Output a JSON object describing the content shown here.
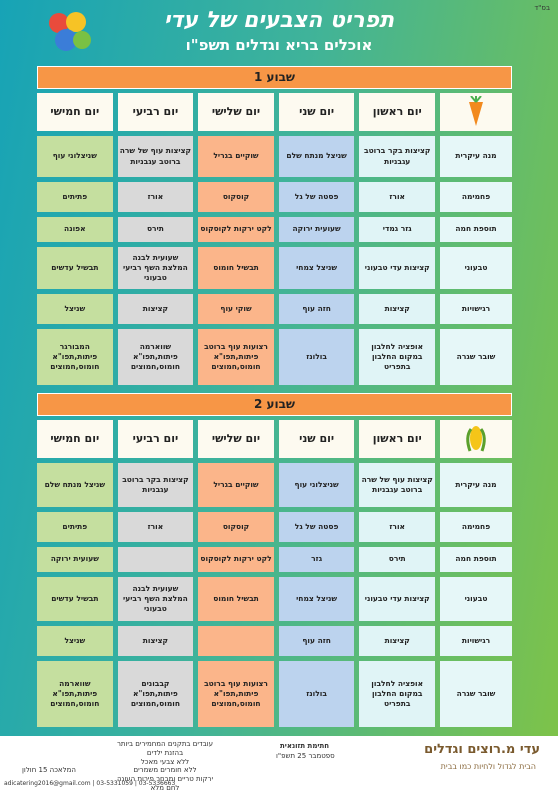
{
  "header": {
    "tag": "בס\"ד",
    "title": "תפריט הצבעים של עדי",
    "subtitle": "אוכלים בריא וגדלים תשפ\"ו"
  },
  "weeks": [
    {
      "title": "שבוע 1",
      "days": [
        "יום ראשון",
        "יום שני",
        "יום שלישי",
        "יום רביעי",
        "יום חמישי"
      ],
      "rows": [
        {
          "label": "מנה עיקרית",
          "cells": [
            "קציצות בקר ברוטב עגבניות",
            "שניצל מנתח שלם",
            "שוקיים בגריל",
            "קציצות עוף של שרה ברוטב עגבניות",
            "שניצלוני עוף"
          ]
        },
        {
          "label": "פחמימה",
          "cells": [
            "אורז",
            "פסטה של גל",
            "קוסקוס",
            "אורז",
            "פתיתים"
          ]
        },
        {
          "label": "תוספת חמה",
          "cells": [
            "גזר גמדי",
            "שעועית ירוקה",
            "לקט ירקות לקוסקוס",
            "תירס",
            "אפונה"
          ]
        },
        {
          "label": "טבעוני",
          "cells": [
            "קציצות עדי טבעוני",
            "שניצל צמחי",
            "תבשיל חומוס",
            "שעועית לבנה המלצת השף רביעי טבעוני",
            "תבשיל עדשים"
          ]
        },
        {
          "label": "רגישויות",
          "cells": [
            "קציצות",
            "חזה עוף",
            "שוקי עוף",
            "קציצות",
            "שניצל"
          ]
        },
        {
          "label": "שובר שגרה",
          "cells": [
            "אופציה לחלבון במקום החלבון בתפריט",
            "בולונז",
            "רצועות עוף ברוטב פיתות,תפו\"א חומוס,חמוצים",
            "שווארמה פיתות,תפו\"א חומוס,חמוצים",
            "המבורגר פיתות,תפו\"א חומוס,חמוצים"
          ]
        }
      ]
    },
    {
      "title": "שבוע 2",
      "days": [
        "יום ראשון",
        "יום שני",
        "יום שלישי",
        "יום רביעי",
        "יום חמישי"
      ],
      "rows": [
        {
          "label": "מנה עיקרית",
          "cells": [
            "קציצות עוף של שרה ברוטב עגבניות",
            "שניצלוני עוף",
            "שוקיים בגריל",
            "קציצות בקר ברוטב עגבניות",
            "שניצל מנתח שלם"
          ]
        },
        {
          "label": "פחמימה",
          "cells": [
            "אורז",
            "פסטה של גל",
            "קוסקוס",
            "אורז",
            "פתיתים"
          ]
        },
        {
          "label": "תוספת חמה",
          "cells": [
            "תירס",
            "גזר",
            "לקט ירקות לקוסקוס",
            null,
            "שעועית ירוקה"
          ]
        },
        {
          "label": "טבעוני",
          "cells": [
            "קציצות עדי טבעוני",
            "שניצל צמחי",
            "תבשיל חומוס",
            "שעועית לבנה המלצת השף רביעי טבעוני",
            "תבשיל עדשים"
          ]
        },
        {
          "label": "רגישויות",
          "cells": [
            "קציצות",
            "חזה עוף",
            null,
            "קציצות",
            "שניצל"
          ]
        },
        {
          "label": "שובר שגרה",
          "cells": [
            "אופציה לחלבון במקום החלבון בתפריט",
            "בולונז",
            "רצועות עוף ברוטב פיתות,תפו\"א חומוס,חמוצים",
            "קבבונים פיתות,תפו\"א חומוס,חמוצים",
            "שווארמה פיתות,תפו\"א חומוס,חמוצים"
          ]
        }
      ]
    }
  ],
  "footer": {
    "brand": "עדי מ.רוצים וגדלים",
    "slogan": "הבית לגדול ולחיות כמו בבית",
    "signature": "חתימת תזונאית",
    "date": "ספטמבר 25 תשפ\"ו",
    "notes": [
      "עובדים בתקנים המחמירים ביותר",
      "בהזנת ילדים",
      "ללא צבעי מאכל",
      "ללא חומרים משמרים",
      "ירקות טריים ומבחר פירות העונה",
      "לחם מלא"
    ],
    "address": "המלאכה 15 חולון",
    "contact": "adicatering2016@gmail.com | 03-5331059 | 03-5336663"
  }
}
